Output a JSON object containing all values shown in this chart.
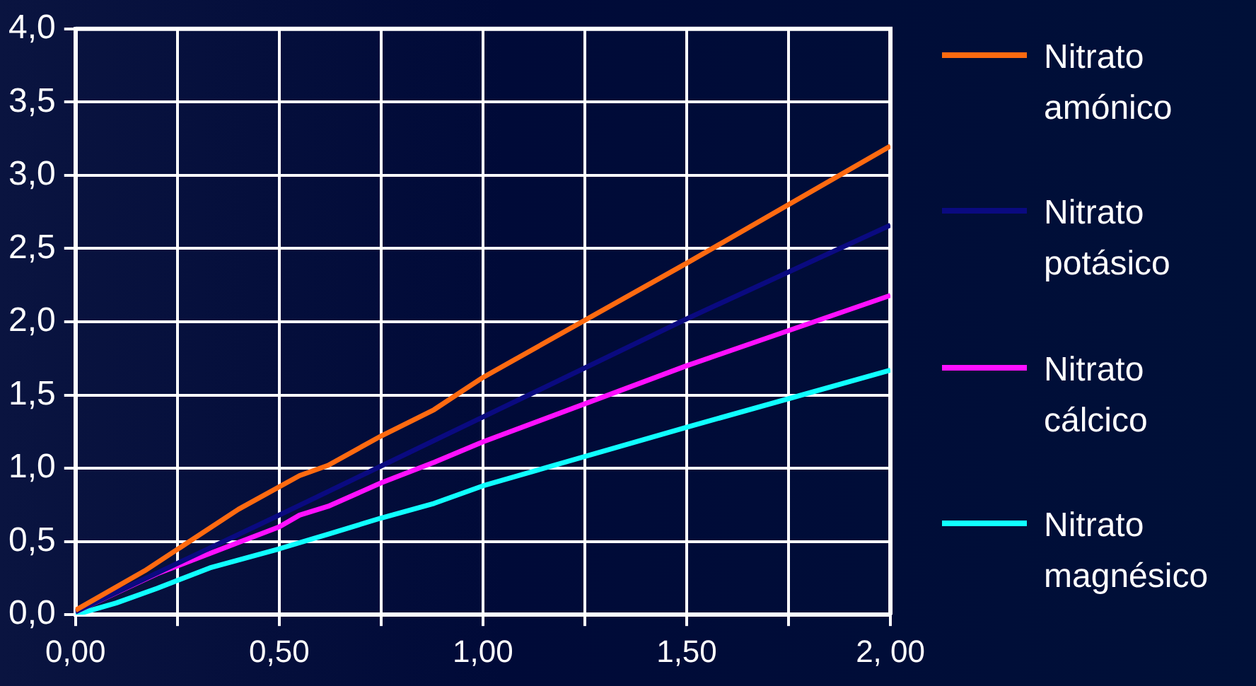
{
  "chart_data": {
    "type": "line",
    "legend": "right",
    "grid": true,
    "marker": "none",
    "xlim": [
      0,
      2
    ],
    "xticks": [
      {
        "value": 0,
        "label": "0,00"
      },
      {
        "value": 0.25,
        "label": null
      },
      {
        "value": 0.5,
        "label": "0,50"
      },
      {
        "value": 0.75,
        "label": null
      },
      {
        "value": 1,
        "label": "1,00"
      },
      {
        "value": 1.25,
        "label": null
      },
      {
        "value": 1.5,
        "label": "1,50"
      },
      {
        "value": 1.75,
        "label": null
      },
      {
        "value": 2,
        "label": "2, 00"
      }
    ],
    "ylim": [
      0,
      4
    ],
    "yticks": [
      {
        "value": 0,
        "label": "0,0"
      },
      {
        "value": 0.5,
        "label": "0,5"
      },
      {
        "value": 1,
        "label": "1,0"
      },
      {
        "value": 1.5,
        "label": "1,5"
      },
      {
        "value": 2,
        "label": "2,0"
      },
      {
        "value": 2.5,
        "label": "2,5"
      },
      {
        "value": 3,
        "label": "3,0"
      },
      {
        "value": 3.5,
        "label": "3,5"
      },
      {
        "value": 4,
        "label": "4,0"
      }
    ],
    "series": [
      {
        "name": "Nitrato amónico",
        "color": "#ff6a10",
        "x": [
          0,
          0.17,
          0.4,
          0.55,
          0.62,
          0.75,
          0.88,
          1,
          1.5,
          2
        ],
        "values": [
          0.03,
          0.3,
          0.72,
          0.95,
          1.02,
          1.22,
          1.4,
          1.62,
          2.4,
          3.2
        ]
      },
      {
        "name": "Nitrato potásico",
        "color": "#0a0a80",
        "x": [
          0,
          0.5,
          1,
          1.5,
          2
        ],
        "values": [
          0.02,
          0.68,
          1.35,
          2.02,
          2.66
        ]
      },
      {
        "name": "Nitrato cálcico",
        "color": "#ff10ff",
        "x": [
          0,
          0.2,
          0.5,
          0.55,
          0.62,
          0.75,
          0.88,
          1,
          1.5,
          2
        ],
        "values": [
          0.02,
          0.28,
          0.6,
          0.68,
          0.74,
          0.9,
          1.04,
          1.18,
          1.7,
          2.18
        ]
      },
      {
        "name": "Nitrato magnésico",
        "color": "#10ffff",
        "x": [
          0,
          0.1,
          0.2,
          0.33,
          0.5,
          0.62,
          0.75,
          0.88,
          1,
          1.5,
          2
        ],
        "values": [
          0,
          0.08,
          0.18,
          0.32,
          0.45,
          0.55,
          0.66,
          0.76,
          0.88,
          1.28,
          1.67
        ]
      }
    ]
  }
}
